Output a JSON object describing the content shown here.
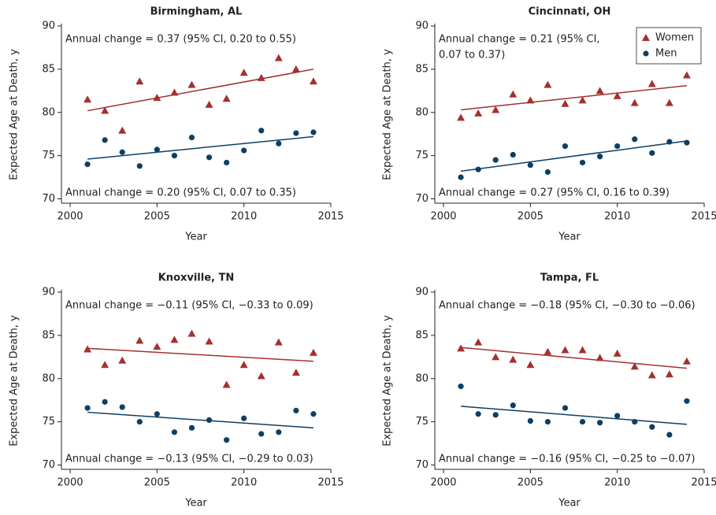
{
  "chart_data": [
    {
      "type": "scatter",
      "title": "Birmingham, AL",
      "xlabel": "Year",
      "ylabel": "Expected Age at Death, y",
      "x": [
        2001,
        2002,
        2003,
        2004,
        2005,
        2006,
        2007,
        2008,
        2009,
        2010,
        2011,
        2012,
        2013,
        2014
      ],
      "xlim": [
        1999.5,
        2015
      ],
      "xticks": [
        2000,
        2005,
        2010,
        2015
      ],
      "ylim": [
        69.5,
        90
      ],
      "yticks": [
        70,
        75,
        80,
        85,
        90
      ],
      "series": [
        {
          "name": "Women",
          "color": "#a3312f",
          "marker": "triangle",
          "values": [
            81.5,
            80.2,
            77.9,
            83.6,
            81.7,
            82.3,
            83.2,
            80.9,
            81.6,
            84.6,
            84.0,
            86.3,
            85.0,
            83.6
          ]
        },
        {
          "name": "Men",
          "color": "#0d3f63",
          "marker": "circle",
          "values": [
            74.0,
            76.8,
            75.4,
            73.8,
            75.7,
            75.0,
            77.1,
            74.8,
            74.2,
            75.6,
            77.9,
            76.4,
            77.6,
            77.7
          ]
        }
      ],
      "trend_lines": [
        {
          "color": "#a3312f",
          "x": [
            2001,
            2014
          ],
          "values": [
            80.2,
            85.0
          ]
        },
        {
          "color": "#0d3f63",
          "x": [
            2001,
            2014
          ],
          "values": [
            74.6,
            77.2
          ]
        }
      ],
      "annotations": [
        {
          "lines": [
            "Annual change = 0.37 (95% CI, 0.20 to 0.55)"
          ]
        },
        {
          "lines": [
            "Annual change = 0.20 (95% CI, 0.07 to 0.35)"
          ]
        }
      ]
    },
    {
      "type": "scatter",
      "title": "Cincinnati, OH",
      "xlabel": "Year",
      "ylabel": "Expected Age at Death, y",
      "x": [
        2001,
        2002,
        2003,
        2004,
        2005,
        2006,
        2007,
        2008,
        2009,
        2010,
        2011,
        2012,
        2013,
        2014
      ],
      "xlim": [
        1999.5,
        2015
      ],
      "xticks": [
        2000,
        2005,
        2010,
        2015
      ],
      "ylim": [
        69.5,
        90
      ],
      "yticks": [
        70,
        75,
        80,
        85,
        90
      ],
      "legend": "upper right",
      "series": [
        {
          "name": "Women",
          "color": "#a3312f",
          "marker": "triangle",
          "values": [
            79.4,
            79.9,
            80.3,
            82.1,
            81.4,
            83.2,
            81.0,
            81.4,
            82.5,
            81.9,
            81.1,
            83.3,
            81.1,
            84.3
          ]
        },
        {
          "name": "Men",
          "color": "#0d3f63",
          "marker": "circle",
          "values": [
            72.5,
            73.4,
            74.5,
            75.1,
            73.9,
            73.1,
            76.1,
            74.2,
            74.9,
            76.1,
            76.9,
            75.3,
            76.6,
            76.5
          ]
        }
      ],
      "trend_lines": [
        {
          "color": "#a3312f",
          "x": [
            2001,
            2014
          ],
          "values": [
            80.3,
            83.1
          ]
        },
        {
          "color": "#0d3f63",
          "x": [
            2001,
            2014
          ],
          "values": [
            73.2,
            76.7
          ]
        }
      ],
      "annotations": [
        {
          "lines": [
            "Annual change = 0.21 (95% CI,",
            "0.07 to 0.37)"
          ]
        },
        {
          "lines": [
            "Annual change = 0.27 (95% CI, 0.16 to 0.39)"
          ]
        }
      ]
    },
    {
      "type": "scatter",
      "title": "Knoxville, TN",
      "xlabel": "Year",
      "ylabel": "Expected Age at Death, y",
      "x": [
        2001,
        2002,
        2003,
        2004,
        2005,
        2006,
        2007,
        2008,
        2009,
        2010,
        2011,
        2012,
        2013,
        2014
      ],
      "xlim": [
        1999.5,
        2015
      ],
      "xticks": [
        2000,
        2005,
        2010,
        2015
      ],
      "ylim": [
        69.5,
        90
      ],
      "yticks": [
        70,
        75,
        80,
        85,
        90
      ],
      "series": [
        {
          "name": "Women",
          "color": "#a3312f",
          "marker": "triangle",
          "values": [
            83.4,
            81.6,
            82.1,
            84.4,
            83.7,
            84.5,
            85.2,
            84.3,
            79.3,
            81.6,
            80.3,
            84.2,
            80.7,
            83.0
          ]
        },
        {
          "name": "Men",
          "color": "#0d3f63",
          "marker": "circle",
          "values": [
            76.6,
            77.3,
            76.7,
            75.0,
            75.9,
            73.8,
            74.3,
            75.2,
            72.9,
            75.4,
            73.6,
            73.8,
            76.3,
            75.9
          ]
        }
      ],
      "trend_lines": [
        {
          "color": "#a3312f",
          "x": [
            2001,
            2014
          ],
          "values": [
            83.5,
            82.0
          ]
        },
        {
          "color": "#0d3f63",
          "x": [
            2001,
            2014
          ],
          "values": [
            76.1,
            74.3
          ]
        }
      ],
      "annotations": [
        {
          "lines": [
            "Annual change = −0.11 (95% CI, −0.33 to 0.09)"
          ]
        },
        {
          "lines": [
            "Annual change = −0.13 (95% CI, −0.29 to 0.03)"
          ]
        }
      ]
    },
    {
      "type": "scatter",
      "title": "Tampa, FL",
      "xlabel": "Year",
      "ylabel": "Expected Age at Death, y",
      "x": [
        2001,
        2002,
        2003,
        2004,
        2005,
        2006,
        2007,
        2008,
        2009,
        2010,
        2011,
        2012,
        2013,
        2014
      ],
      "xlim": [
        1999.5,
        2015
      ],
      "xticks": [
        2000,
        2005,
        2010,
        2015
      ],
      "ylim": [
        69.5,
        90
      ],
      "yticks": [
        70,
        75,
        80,
        85,
        90
      ],
      "series": [
        {
          "name": "Women",
          "color": "#a3312f",
          "marker": "triangle",
          "values": [
            83.5,
            84.2,
            82.5,
            82.2,
            81.6,
            83.1,
            83.3,
            83.3,
            82.4,
            82.9,
            81.4,
            80.4,
            80.5,
            82.0
          ]
        },
        {
          "name": "Men",
          "color": "#0d3f63",
          "marker": "circle",
          "values": [
            79.1,
            75.9,
            75.8,
            76.9,
            75.1,
            75.0,
            76.6,
            75.0,
            74.9,
            75.7,
            75.0,
            74.4,
            73.5,
            77.4
          ]
        }
      ],
      "trend_lines": [
        {
          "color": "#a3312f",
          "x": [
            2001,
            2014
          ],
          "values": [
            83.6,
            81.2
          ]
        },
        {
          "color": "#0d3f63",
          "x": [
            2001,
            2014
          ],
          "values": [
            76.8,
            74.7
          ]
        }
      ],
      "annotations": [
        {
          "lines": [
            "Annual change = −0.18 (95% CI, −0.30 to −0.06)"
          ]
        },
        {
          "lines": [
            "Annual change = −0.16 (95% CI, −0.25 to −0.07)"
          ]
        }
      ]
    }
  ]
}
